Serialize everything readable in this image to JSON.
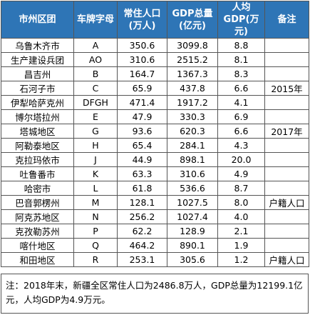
{
  "headers": {
    "city": "市州区团",
    "plate": "车牌字母",
    "population": "常住人口(万人)",
    "gdp_total": "GDP总量(亿元)",
    "gdp_per_capita": "人均GDP(万元)",
    "remark": "备注"
  },
  "rows": [
    {
      "city": "乌鲁木齐市",
      "plate": "A",
      "population": "350.6",
      "gdp_total": "3099.8",
      "gdp_per_capita": "8.8",
      "remark": ""
    },
    {
      "city": "生产建设兵团",
      "plate": "AO",
      "population": "310.6",
      "gdp_total": "2515.2",
      "gdp_per_capita": "8.1",
      "remark": ""
    },
    {
      "city": "昌吉州",
      "plate": "B",
      "population": "164.7",
      "gdp_total": "1367.3",
      "gdp_per_capita": "8.3",
      "remark": ""
    },
    {
      "city": "石河子市",
      "plate": "C",
      "population": "65.9",
      "gdp_total": "437.8",
      "gdp_per_capita": "6.6",
      "remark": "2015年"
    },
    {
      "city": "伊犁哈萨克州",
      "plate": "DFGH",
      "population": "471.4",
      "gdp_total": "1917.2",
      "gdp_per_capita": "4.1",
      "remark": ""
    },
    {
      "city": "博尔塔拉州",
      "plate": "E",
      "population": "47.9",
      "gdp_total": "330.3",
      "gdp_per_capita": "6.9",
      "remark": ""
    },
    {
      "city": "塔城地区",
      "plate": "G",
      "population": "93.6",
      "gdp_total": "620.3",
      "gdp_per_capita": "6.6",
      "remark": "2017年"
    },
    {
      "city": "阿勒泰地区",
      "plate": "H",
      "population": "65.4",
      "gdp_total": "284.1",
      "gdp_per_capita": "4.3",
      "remark": ""
    },
    {
      "city": "克拉玛依市",
      "plate": "J",
      "population": "44.9",
      "gdp_total": "898.1",
      "gdp_per_capita": "20.0",
      "remark": ""
    },
    {
      "city": "吐鲁番市",
      "plate": "K",
      "population": "63.3",
      "gdp_total": "310.6",
      "gdp_per_capita": "4.9",
      "remark": ""
    },
    {
      "city": "哈密市",
      "plate": "L",
      "population": "61.8",
      "gdp_total": "536.6",
      "gdp_per_capita": "8.7",
      "remark": ""
    },
    {
      "city": "巴音郭楞州",
      "plate": "M",
      "population": "128.1",
      "gdp_total": "1027.5",
      "gdp_per_capita": "8.0",
      "remark": "户籍人口"
    },
    {
      "city": "阿克苏地区",
      "plate": "N",
      "population": "256.2",
      "gdp_total": "1027.4",
      "gdp_per_capita": "4.0",
      "remark": ""
    },
    {
      "city": "克孜勒苏州",
      "plate": "P",
      "population": "62.2",
      "gdp_total": "128.9",
      "gdp_per_capita": "2.1",
      "remark": ""
    },
    {
      "city": "喀什地区",
      "plate": "Q",
      "population": "464.2",
      "gdp_total": "890.1",
      "gdp_per_capita": "1.9",
      "remark": ""
    },
    {
      "city": "和田地区",
      "plate": "R",
      "population": "253.1",
      "gdp_total": "305.6",
      "gdp_per_capita": "1.2",
      "remark": "户籍人口"
    }
  ],
  "footnote": "注：2018年末，新疆全区常住人口为2486.8万人，GDP总量为12199.1亿元，人均GDP为4.9万元。",
  "colors": {
    "header_bg": "#2e75b6",
    "header_text": "#ffffff",
    "border": "#555555"
  }
}
